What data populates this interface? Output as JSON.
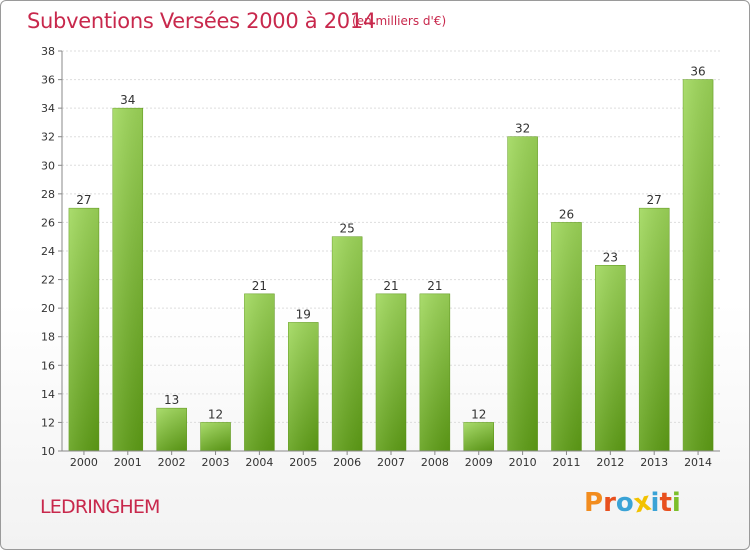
{
  "header": {
    "title": "Subventions Versées 2000 à 2014",
    "subtitle": "(en milliers d'€)"
  },
  "footer": {
    "commune": "LEDRINGHEM",
    "logo_text": "Proxiti",
    "logo_colors": [
      "#f28c1e",
      "#e8501e",
      "#3aa3d6",
      "#f2c200",
      "#3aa3d6",
      "#e8501e",
      "#7cbf2a"
    ]
  },
  "colors": {
    "title": "#c8284c",
    "bar_light": "#9fd85a",
    "bar_dark": "#5f9f16",
    "grid": "#dddddd",
    "axis": "#888888"
  },
  "chart_data": {
    "type": "bar",
    "categories": [
      "2000",
      "2001",
      "2002",
      "2003",
      "2004",
      "2005",
      "2006",
      "2007",
      "2008",
      "2009",
      "2010",
      "2011",
      "2012",
      "2013",
      "2014"
    ],
    "values": [
      27,
      34,
      13,
      12,
      21,
      19,
      25,
      21,
      21,
      12,
      32,
      26,
      23,
      27,
      36
    ],
    "title": "Subventions Versées 2000 à 2014",
    "subtitle": "(en milliers d'€)",
    "ylim": [
      10,
      38
    ],
    "yticks": [
      10,
      12,
      14,
      16,
      18,
      20,
      22,
      24,
      26,
      28,
      30,
      32,
      34,
      36,
      38
    ],
    "grid": true,
    "legend": "none"
  }
}
